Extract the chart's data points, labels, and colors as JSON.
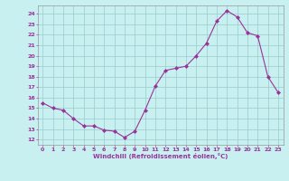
{
  "x": [
    0,
    1,
    2,
    3,
    4,
    5,
    6,
    7,
    8,
    9,
    10,
    11,
    12,
    13,
    14,
    15,
    16,
    17,
    18,
    19,
    20,
    21,
    22,
    23
  ],
  "y": [
    15.5,
    15.0,
    14.8,
    14.0,
    13.3,
    13.3,
    12.9,
    12.8,
    12.2,
    12.8,
    14.8,
    17.1,
    18.6,
    18.8,
    19.0,
    20.0,
    21.2,
    23.3,
    24.3,
    23.7,
    22.2,
    21.9,
    18.0,
    16.5
  ],
  "xlabel": "Windchill (Refroidissement éolien,°C)",
  "ylabel": "",
  "ylim": [
    11.5,
    24.8
  ],
  "xlim": [
    -0.5,
    23.5
  ],
  "yticks": [
    12,
    13,
    14,
    15,
    16,
    17,
    18,
    19,
    20,
    21,
    22,
    23,
    24
  ],
  "xticks": [
    0,
    1,
    2,
    3,
    4,
    5,
    6,
    7,
    8,
    9,
    10,
    11,
    12,
    13,
    14,
    15,
    16,
    17,
    18,
    19,
    20,
    21,
    22,
    23
  ],
  "line_color": "#993399",
  "marker_color": "#993399",
  "bg_color": "#c8f0f0",
  "grid_color": "#99cccc",
  "axis_color": "#666666",
  "tick_color": "#993399",
  "label_color": "#993399"
}
